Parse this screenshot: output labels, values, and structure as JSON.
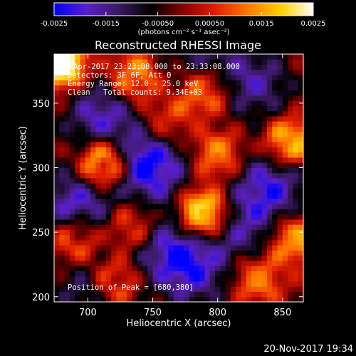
{
  "chart_data": {
    "type": "heatmap",
    "title": "Reconstructed RHESSI Image",
    "xlabel": "Heliocentric X (arcsec)",
    "ylabel": "Heliocentric Y (arcsec)",
    "xlim": [
      674,
      866
    ],
    "ylim": [
      196,
      388
    ],
    "xticks": [
      700,
      750,
      800,
      850
    ],
    "yticks": [
      200,
      250,
      300,
      350
    ],
    "colorbar": {
      "min": -0.0025,
      "max": 0.0025,
      "ticks": [
        "-0.0025",
        "-0.0015",
        "-0.00050",
        "0.00050",
        "0.0015",
        "0.0025"
      ],
      "tick_values": [
        -0.0025,
        -0.0015,
        -0.0005,
        0.0005,
        0.0015,
        0.0025
      ],
      "label": "(photons cm⁻² s⁻¹ asec⁻²)",
      "colormap": [
        "#0000ff",
        "#5a1fc8",
        "#3a1a60",
        "#000000",
        "#8a0000",
        "#e02000",
        "#ff7a00",
        "#ffd000",
        "#ffffff"
      ]
    },
    "annotations": {
      "time_range": "11-Apr-2017 23:23:08.000 to 23:33:08.000",
      "detectors": "Detectors: 3F 6F, Att 0",
      "energy_range": "Energy Range: 12.0 - 25.0 keV",
      "algorithm": "Clean",
      "total_counts": "Total counts: 9.34E+03",
      "peak": "Position of Peak = [680,380]"
    },
    "features": [
      {
        "x": 712,
        "y": 304,
        "value": 0.0022
      },
      {
        "x": 788,
        "y": 265,
        "value": 0.0024
      },
      {
        "x": 680,
        "y": 380,
        "value": 0.0025
      },
      {
        "x": 735,
        "y": 255,
        "value": 0.0012
      },
      {
        "x": 690,
        "y": 245,
        "value": 0.0015
      },
      {
        "x": 735,
        "y": 370,
        "value": 0.0014
      },
      {
        "x": 790,
        "y": 360,
        "value": 0.0015
      },
      {
        "x": 855,
        "y": 320,
        "value": 0.0018
      },
      {
        "x": 858,
        "y": 245,
        "value": 0.0016
      },
      {
        "x": 800,
        "y": 310,
        "value": 0.0013
      },
      {
        "x": 830,
        "y": 215,
        "value": 0.0013
      },
      {
        "x": 720,
        "y": 212,
        "value": 0.0013
      },
      {
        "x": 760,
        "y": 335,
        "value": 0.001
      },
      {
        "x": 748,
        "y": 302,
        "value": -0.0025
      },
      {
        "x": 690,
        "y": 270,
        "value": -0.002
      },
      {
        "x": 710,
        "y": 340,
        "value": -0.0018
      },
      {
        "x": 840,
        "y": 285,
        "value": -0.002
      },
      {
        "x": 780,
        "y": 220,
        "value": -0.0018
      },
      {
        "x": 830,
        "y": 365,
        "value": -0.0015
      },
      {
        "x": 790,
        "y": 385,
        "value": -0.0012
      },
      {
        "x": 700,
        "y": 205,
        "value": -0.0012
      },
      {
        "x": 760,
        "y": 240,
        "value": -0.0014
      },
      {
        "x": 820,
        "y": 250,
        "value": -0.0012
      }
    ]
  },
  "footer": {
    "timestamp": "20-Nov-2017 19:34"
  }
}
